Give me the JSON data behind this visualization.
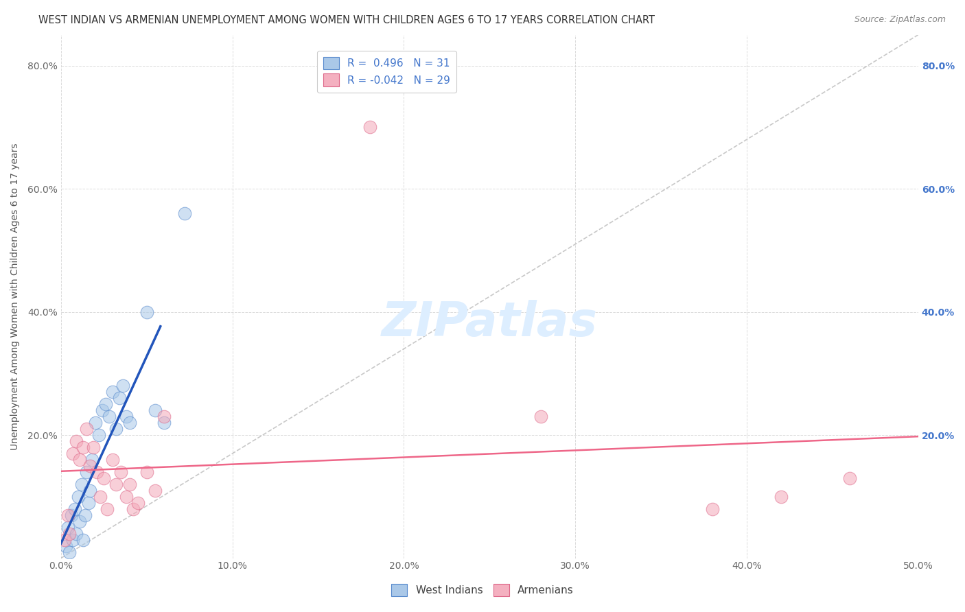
{
  "title": "WEST INDIAN VS ARMENIAN UNEMPLOYMENT AMONG WOMEN WITH CHILDREN AGES 6 TO 17 YEARS CORRELATION CHART",
  "source": "Source: ZipAtlas.com",
  "ylabel": "Unemployment Among Women with Children Ages 6 to 17 years",
  "xlim": [
    0,
    0.5
  ],
  "ylim": [
    0,
    0.85
  ],
  "xticks": [
    0.0,
    0.1,
    0.2,
    0.3,
    0.4,
    0.5
  ],
  "xticklabels": [
    "0.0%",
    "10.0%",
    "20.0%",
    "30.0%",
    "40.0%",
    "50.0%"
  ],
  "yticks": [
    0.0,
    0.2,
    0.4,
    0.6,
    0.8
  ],
  "yticklabels_left": [
    "",
    "20.0%",
    "40.0%",
    "60.0%",
    "80.0%"
  ],
  "yticklabels_right": [
    "",
    "20.0%",
    "40.0%",
    "60.0%",
    "80.0%"
  ],
  "west_indian_color": "#a8c8e8",
  "armenian_color": "#f4a8b8",
  "west_indian_edge": "#5588cc",
  "armenian_edge": "#dd6688",
  "regression_blue": "#2255bb",
  "regression_pink": "#ee6688",
  "diagonal_color": "#bbbbbb",
  "background_color": "#ffffff",
  "legend_blue_fill": "#aac8e8",
  "legend_pink_fill": "#f4b0c0",
  "west_indians_x": [
    0.003,
    0.004,
    0.005,
    0.006,
    0.007,
    0.008,
    0.009,
    0.01,
    0.011,
    0.012,
    0.013,
    0.014,
    0.015,
    0.016,
    0.017,
    0.018,
    0.02,
    0.022,
    0.024,
    0.026,
    0.028,
    0.03,
    0.032,
    0.034,
    0.036,
    0.038,
    0.04,
    0.05,
    0.055,
    0.06,
    0.072
  ],
  "west_indians_y": [
    0.02,
    0.05,
    0.01,
    0.07,
    0.03,
    0.08,
    0.04,
    0.1,
    0.06,
    0.12,
    0.03,
    0.07,
    0.14,
    0.09,
    0.11,
    0.16,
    0.22,
    0.2,
    0.24,
    0.25,
    0.23,
    0.27,
    0.21,
    0.26,
    0.28,
    0.23,
    0.22,
    0.4,
    0.24,
    0.22,
    0.56
  ],
  "armenians_x": [
    0.002,
    0.004,
    0.005,
    0.007,
    0.009,
    0.011,
    0.013,
    0.015,
    0.017,
    0.019,
    0.021,
    0.023,
    0.025,
    0.027,
    0.03,
    0.032,
    0.035,
    0.038,
    0.04,
    0.042,
    0.045,
    0.05,
    0.055,
    0.06,
    0.18,
    0.28,
    0.38,
    0.42,
    0.46
  ],
  "armenians_y": [
    0.03,
    0.07,
    0.04,
    0.17,
    0.19,
    0.16,
    0.18,
    0.21,
    0.15,
    0.18,
    0.14,
    0.1,
    0.13,
    0.08,
    0.16,
    0.12,
    0.14,
    0.1,
    0.12,
    0.08,
    0.09,
    0.14,
    0.11,
    0.23,
    0.7,
    0.23,
    0.08,
    0.1,
    0.13
  ],
  "marker_size": 180,
  "alpha": 0.55,
  "grid_color": "#cccccc",
  "tick_color_right": "#4477cc",
  "watermark_color": "#ddeeff"
}
